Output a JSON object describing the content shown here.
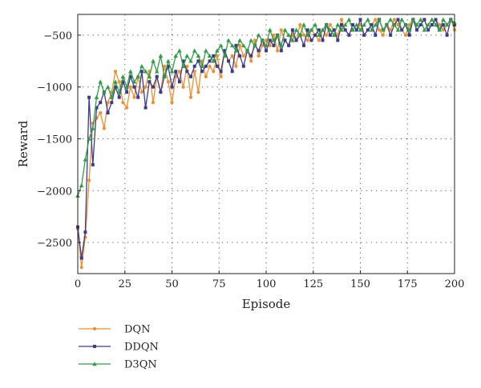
{
  "chart_data": {
    "type": "line",
    "title": "",
    "xlabel": "Episode",
    "ylabel": "Reward",
    "xlim": [
      0,
      200
    ],
    "ylim": [
      -2800,
      -300
    ],
    "xticks": [
      0,
      25,
      50,
      75,
      100,
      125,
      150,
      175,
      200
    ],
    "yticks": [
      -2500,
      -2000,
      -1500,
      -1000,
      -500
    ],
    "xtick_labels": [
      "0",
      "25",
      "50",
      "75",
      "100",
      "125",
      "150",
      "175",
      "200"
    ],
    "ytick_labels": [
      "−2500",
      "−2000",
      "−1500",
      "−1000",
      "−500"
    ],
    "grid": true,
    "grid_style": "dotted",
    "legend_position": "below-left",
    "series": [
      {
        "name": "DQN",
        "color": "#f28e2b",
        "marker": "circle",
        "x": [
          0,
          2,
          4,
          6,
          8,
          10,
          12,
          14,
          16,
          18,
          20,
          22,
          24,
          26,
          28,
          30,
          32,
          34,
          36,
          38,
          40,
          42,
          44,
          46,
          48,
          50,
          52,
          54,
          56,
          58,
          60,
          62,
          64,
          66,
          68,
          70,
          72,
          74,
          76,
          78,
          80,
          82,
          84,
          86,
          88,
          90,
          92,
          94,
          96,
          98,
          100,
          102,
          104,
          106,
          108,
          110,
          112,
          114,
          116,
          118,
          120,
          122,
          124,
          126,
          128,
          130,
          132,
          134,
          136,
          138,
          140,
          142,
          144,
          146,
          148,
          150,
          152,
          154,
          156,
          158,
          160,
          162,
          164,
          166,
          168,
          170,
          172,
          174,
          176,
          178,
          180,
          182,
          184,
          186,
          188,
          190,
          192,
          194,
          196,
          198,
          200
        ],
        "y": [
          -2370,
          -2740,
          -2450,
          -1900,
          -1350,
          -1300,
          -1250,
          -1400,
          -1150,
          -1050,
          -850,
          -950,
          -1150,
          -1200,
          -1000,
          -1100,
          -900,
          -1050,
          -1000,
          -850,
          -1150,
          -900,
          -1050,
          -800,
          -950,
          -1150,
          -900,
          -850,
          -1000,
          -800,
          -1100,
          -850,
          -1050,
          -750,
          -900,
          -800,
          -850,
          -700,
          -900,
          -650,
          -750,
          -700,
          -800,
          -600,
          -700,
          -650,
          -750,
          -550,
          -700,
          -600,
          -550,
          -600,
          -500,
          -650,
          -450,
          -550,
          -600,
          -500,
          -550,
          -400,
          -500,
          -550,
          -450,
          -500,
          -550,
          -450,
          -500,
          -400,
          -450,
          -500,
          -350,
          -450,
          -500,
          -400,
          -450,
          -400,
          -500,
          -450,
          -400,
          -350,
          -450,
          -500,
          -400,
          -450,
          -350,
          -400,
          -450,
          -500,
          -400,
          -350,
          -450,
          -400,
          -350,
          -450,
          -400,
          -350,
          -400,
          -450,
          -400,
          -350,
          -450
        ]
      },
      {
        "name": "DDQN",
        "color": "#3b3b8f",
        "marker": "square",
        "x": [
          0,
          2,
          4,
          6,
          8,
          10,
          12,
          14,
          16,
          18,
          20,
          22,
          24,
          26,
          28,
          30,
          32,
          34,
          36,
          38,
          40,
          42,
          44,
          46,
          48,
          50,
          52,
          54,
          56,
          58,
          60,
          62,
          64,
          66,
          68,
          70,
          72,
          74,
          76,
          78,
          80,
          82,
          84,
          86,
          88,
          90,
          92,
          94,
          96,
          98,
          100,
          102,
          104,
          106,
          108,
          110,
          112,
          114,
          116,
          118,
          120,
          122,
          124,
          126,
          128,
          130,
          132,
          134,
          136,
          138,
          140,
          142,
          144,
          146,
          148,
          150,
          152,
          154,
          156,
          158,
          160,
          162,
          164,
          166,
          168,
          170,
          172,
          174,
          176,
          178,
          180,
          182,
          184,
          186,
          188,
          190,
          192,
          194,
          196,
          198,
          200
        ],
        "y": [
          -2350,
          -2650,
          -2400,
          -1100,
          -1750,
          -1200,
          -1150,
          -1050,
          -1250,
          -1150,
          -1000,
          -1100,
          -950,
          -1050,
          -900,
          -1000,
          -1100,
          -850,
          -1200,
          -950,
          -1000,
          -900,
          -1050,
          -900,
          -800,
          -1000,
          -850,
          -950,
          -750,
          -850,
          -900,
          -800,
          -750,
          -850,
          -800,
          -750,
          -700,
          -800,
          -850,
          -650,
          -750,
          -850,
          -600,
          -700,
          -800,
          -650,
          -700,
          -600,
          -650,
          -550,
          -650,
          -550,
          -600,
          -500,
          -650,
          -550,
          -600,
          -450,
          -550,
          -500,
          -600,
          -450,
          -550,
          -500,
          -450,
          -550,
          -400,
          -500,
          -450,
          -550,
          -400,
          -450,
          -500,
          -400,
          -450,
          -350,
          -500,
          -450,
          -400,
          -500,
          -350,
          -450,
          -400,
          -500,
          -400,
          -350,
          -450,
          -400,
          -500,
          -350,
          -450,
          -400,
          -350,
          -450,
          -400,
          -350,
          -450,
          -400,
          -500,
          -350,
          -400
        ]
      },
      {
        "name": "D3QN",
        "color": "#2e9e44",
        "marker": "triangle",
        "x": [
          0,
          2,
          4,
          6,
          8,
          10,
          12,
          14,
          16,
          18,
          20,
          22,
          24,
          26,
          28,
          30,
          32,
          34,
          36,
          38,
          40,
          42,
          44,
          46,
          48,
          50,
          52,
          54,
          56,
          58,
          60,
          62,
          64,
          66,
          68,
          70,
          72,
          74,
          76,
          78,
          80,
          82,
          84,
          86,
          88,
          90,
          92,
          94,
          96,
          98,
          100,
          102,
          104,
          106,
          108,
          110,
          112,
          114,
          116,
          118,
          120,
          122,
          124,
          126,
          128,
          130,
          132,
          134,
          136,
          138,
          140,
          142,
          144,
          146,
          148,
          150,
          152,
          154,
          156,
          158,
          160,
          162,
          164,
          166,
          168,
          170,
          172,
          174,
          176,
          178,
          180,
          182,
          184,
          186,
          188,
          190,
          192,
          194,
          196,
          198,
          200
        ],
        "y": [
          -2050,
          -1950,
          -1700,
          -1500,
          -1400,
          -1100,
          -950,
          -1050,
          -1000,
          -1100,
          -950,
          -1050,
          -900,
          -1000,
          -850,
          -950,
          -900,
          -800,
          -850,
          -900,
          -750,
          -850,
          -700,
          -900,
          -750,
          -850,
          -700,
          -650,
          -800,
          -700,
          -750,
          -650,
          -700,
          -800,
          -650,
          -700,
          -750,
          -650,
          -600,
          -700,
          -550,
          -600,
          -650,
          -550,
          -600,
          -650,
          -550,
          -600,
          -500,
          -550,
          -600,
          -450,
          -550,
          -500,
          -600,
          -450,
          -500,
          -550,
          -450,
          -500,
          -400,
          -500,
          -450,
          -400,
          -500,
          -450,
          -400,
          -450,
          -500,
          -400,
          -450,
          -400,
          -350,
          -450,
          -400,
          -450,
          -400,
          -350,
          -450,
          -400,
          -350,
          -450,
          -400,
          -350,
          -400,
          -450,
          -350,
          -400,
          -450,
          -350,
          -400,
          -350,
          -450,
          -400,
          -350,
          -400,
          -450,
          -350,
          -400,
          -350,
          -380
        ]
      }
    ]
  }
}
